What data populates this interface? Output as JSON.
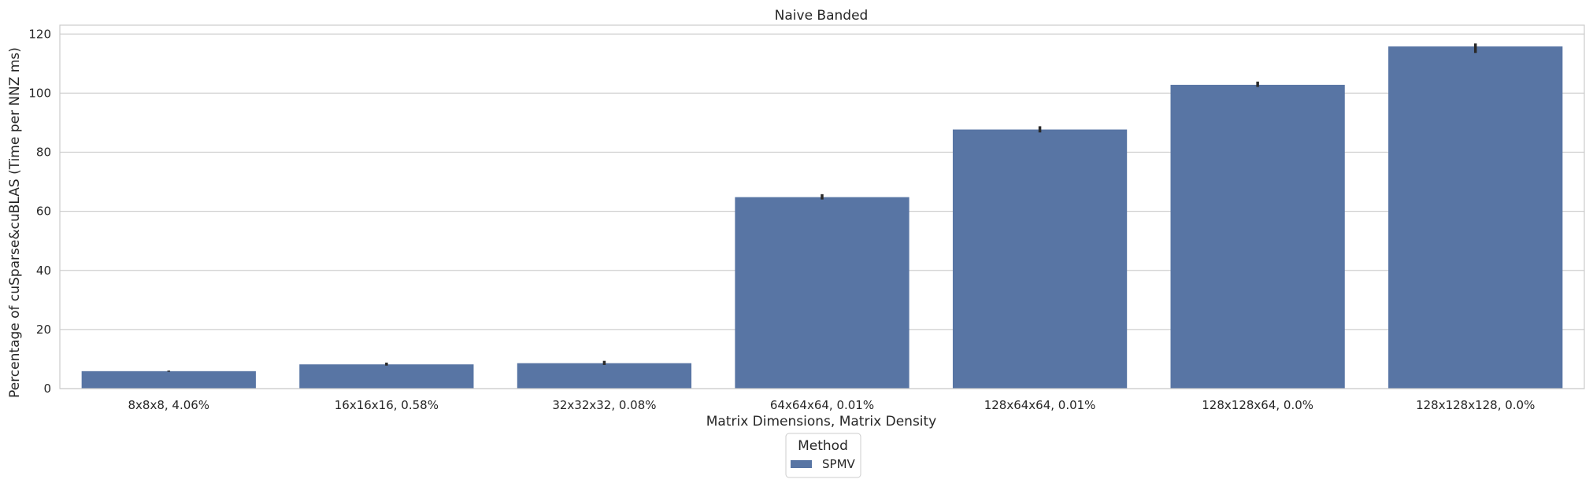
{
  "chart_data": {
    "type": "bar",
    "title": "Naive Banded",
    "xlabel": "Matrix Dimensions, Matrix Density",
    "ylabel": "Percentage of cuSparse&cuBLAS (Time per NNZ ms)",
    "categories": [
      "8x8x8, 4.06%",
      "16x16x16, 0.58%",
      "32x32x32, 0.08%",
      "64x64x64, 0.01%",
      "128x64x64, 0.01%",
      "128x128x64, 0.0%",
      "128x128x128, 0.0%"
    ],
    "series": [
      {
        "name": "SPMV",
        "values": [
          5.9,
          8.2,
          8.6,
          64.8,
          87.7,
          102.8,
          115.8
        ],
        "error_low": [
          5.7,
          7.8,
          8.0,
          64.0,
          86.7,
          102.1,
          113.6
        ],
        "error_high": [
          6.1,
          8.8,
          9.4,
          65.8,
          88.8,
          103.9,
          116.8
        ]
      }
    ],
    "ylim": [
      0,
      123
    ],
    "yticks": [
      0,
      20,
      40,
      60,
      80,
      100,
      120
    ],
    "grid": true,
    "legend": {
      "title": "Method",
      "placement": "bottom-center"
    },
    "colors": {
      "bar": "#5875a4",
      "error": "#2a2a2a",
      "grid": "#cfcfcf",
      "axis": "#cccccc"
    }
  }
}
